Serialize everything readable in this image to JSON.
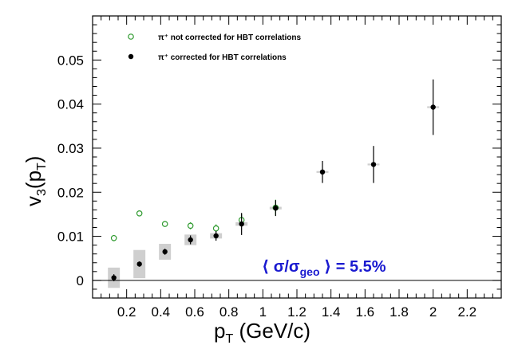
{
  "chart_data": {
    "type": "scatter",
    "xlabel": "p_T (GeV/c)",
    "ylabel": "v_3(p_T)",
    "xlim": [
      0,
      2.4
    ],
    "ylim": [
      -0.004,
      0.06
    ],
    "x_ticks": [
      "0.2",
      "0.4",
      "0.6",
      "0.8",
      "1",
      "1.2",
      "1.4",
      "1.6",
      "1.8",
      "2",
      "2.2"
    ],
    "y_ticks": [
      "0",
      "0.01",
      "0.02",
      "0.03",
      "0.04",
      "0.05"
    ],
    "grid": false,
    "reference_line_y": 0,
    "annotation": "⟨ σ/σgeo ⟩ = 5.5%",
    "series": [
      {
        "name": "π⁺ not corrected for HBT correlations",
        "marker": "open-circle",
        "color": "#2e9a2e",
        "x": [
          0.125,
          0.275,
          0.425,
          0.575,
          0.725,
          0.875,
          1.075
        ],
        "y": [
          0.0096,
          0.0152,
          0.0128,
          0.0124,
          0.0118,
          0.0137,
          0.0165
        ],
        "yerr": [
          0.0007,
          0.0005,
          0.0006,
          0.0008,
          0.0009,
          0.0013,
          0.0018
        ]
      },
      {
        "name": "π⁺ corrected for HBT correlations",
        "marker": "filled-circle",
        "color": "#000000",
        "x": [
          0.125,
          0.275,
          0.425,
          0.575,
          0.725,
          0.875,
          1.075,
          1.35,
          1.65,
          2.0
        ],
        "y": [
          0.0006,
          0.0037,
          0.0065,
          0.0092,
          0.0101,
          0.0128,
          0.0164,
          0.0246,
          0.0263,
          0.0393
        ],
        "yerr": [
          0.0008,
          0.0006,
          0.0007,
          0.001,
          0.0011,
          0.0025,
          0.0018,
          0.0025,
          0.0042,
          0.0063
        ],
        "syst": [
          0.0023,
          0.0032,
          0.0018,
          0.0012,
          0.0006,
          0.0004,
          0.0003,
          0.0002,
          0.0002,
          0.0002
        ]
      }
    ]
  },
  "legend": {
    "items": [
      {
        "label": "π⁺ not corrected for HBT correlations",
        "marker": "open-circle"
      },
      {
        "label": "π⁺ corrected for HBT correlations",
        "marker": "filled-circle"
      }
    ]
  }
}
